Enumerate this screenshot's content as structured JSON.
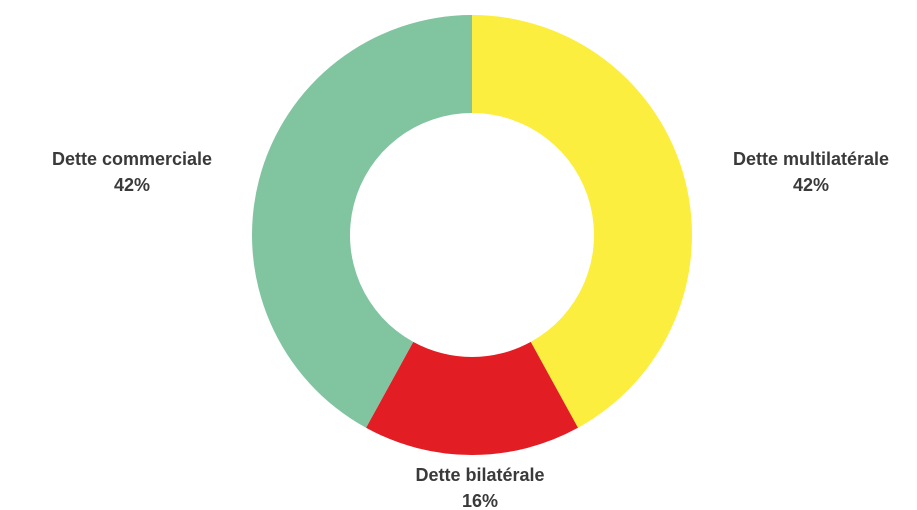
{
  "chart_data": {
    "type": "donut",
    "categories": [
      "Dette multilatérale",
      "Dette bilatérale",
      "Dette commerciale"
    ],
    "values": [
      42,
      16,
      42
    ],
    "value_labels": [
      "42%",
      "16%",
      "42%"
    ],
    "colors": [
      "#fcee3f",
      "#e31d24",
      "#80c4a0"
    ]
  }
}
